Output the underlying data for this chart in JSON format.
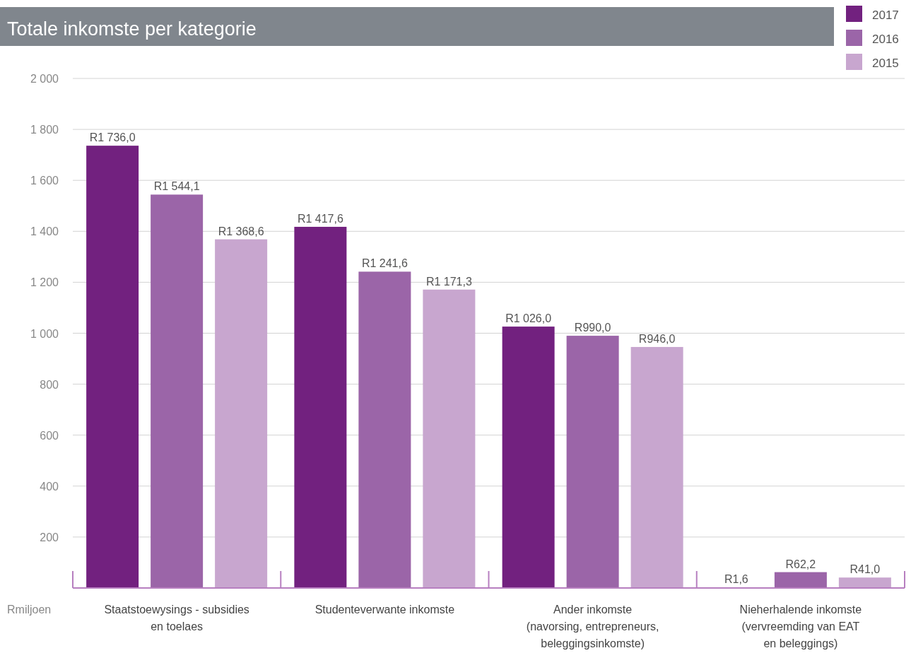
{
  "chart_data": {
    "type": "bar",
    "title": "Totale inkomste per kategorie",
    "ylabel": "Rmiljoen",
    "categories": [
      "Staatstoewysings - subsidies\nen toelaes",
      "Studenteverwante inkomste",
      "Ander inkomste\n(navorsing, entrepreneurs,\nbeleggingsinkomste)",
      "Nieherhalende inkomste\n(vervreemding van EAT\nen beleggings)"
    ],
    "series": [
      {
        "name": "2017",
        "color": "#72217f",
        "values": [
          1736.0,
          1417.6,
          1026.0,
          1.6
        ],
        "value_labels": [
          "R1 736,0",
          "R1 417,6",
          "R1 026,0",
          "R1,6"
        ]
      },
      {
        "name": "2016",
        "color": "#9b65a8",
        "values": [
          1544.1,
          1241.6,
          990.0,
          62.2
        ],
        "value_labels": [
          "R1 544,1",
          "R1 241,6",
          "R990,0",
          "R62,2"
        ]
      },
      {
        "name": "2015",
        "color": "#c8a6cf",
        "values": [
          1368.6,
          1171.3,
          946.0,
          41.0
        ],
        "value_labels": [
          "R1 368,6",
          "R1 171,3",
          "R946,0",
          "R41,0"
        ]
      }
    ],
    "ylim": [
      0,
      2000
    ],
    "yticks": [
      200,
      400,
      600,
      800,
      {
        "value": 1000,
        "label": "1 000"
      },
      {
        "value": 1200,
        "label": "1 200"
      },
      {
        "value": 1400,
        "label": "1 400"
      },
      {
        "value": 1600,
        "label": "1 600"
      },
      {
        "value": 1800,
        "label": "1 800"
      },
      {
        "value": 2000,
        "label": "2 000"
      }
    ],
    "grid": "y",
    "legend": "top right"
  }
}
